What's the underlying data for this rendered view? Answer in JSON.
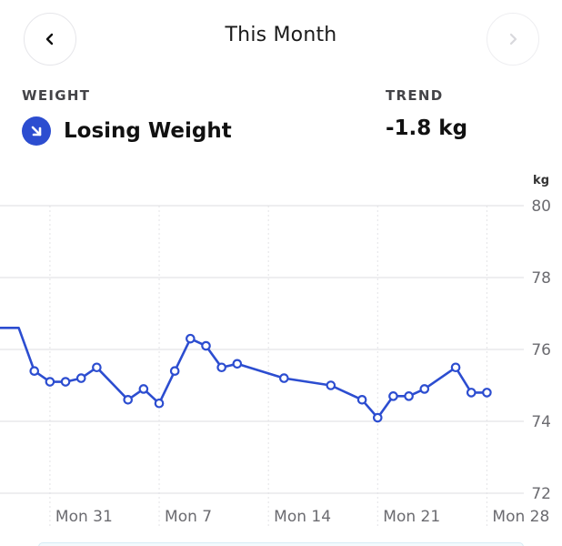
{
  "header": {
    "title": "This Month",
    "prev_icon": "chevron-left-icon",
    "next_icon": "chevron-right-icon"
  },
  "summary": {
    "weight_label": "WEIGHT",
    "weight_status": "Losing Weight",
    "status_icon": "arrow-down-right-icon",
    "trend_label": "TREND",
    "trend_value": "-1.8 kg"
  },
  "colors": {
    "accent": "#2c4dd0",
    "grid": "#e3e3e6",
    "text_muted": "#6b6b70"
  },
  "chart_data": {
    "type": "line",
    "ylabel": "kg",
    "ylim": [
      72,
      80
    ],
    "y_ticks": [
      80,
      78,
      76,
      74,
      72
    ],
    "x_tick_labels": [
      "Mon 31",
      "Mon 7",
      "Mon 14",
      "Mon 21",
      "Mon 28"
    ],
    "x_tick_days": [
      0,
      7,
      14,
      21,
      28
    ],
    "xlim": [
      -3.2,
      29.2
    ],
    "grid": true,
    "series": [
      {
        "x": [
          -3.2,
          -2,
          -1,
          0,
          1,
          2,
          3,
          5,
          6,
          7,
          8,
          9,
          10,
          11,
          12,
          15,
          18,
          20,
          21,
          22,
          23,
          24,
          26,
          27,
          28
        ],
        "values": [
          76.6,
          76.6,
          75.4,
          75.1,
          75.1,
          75.2,
          75.5,
          74.6,
          74.9,
          74.5,
          75.4,
          76.3,
          76.1,
          75.5,
          75.6,
          75.2,
          75.0,
          74.6,
          74.1,
          74.7,
          74.7,
          74.9,
          75.5,
          74.8,
          74.8
        ],
        "markers": [
          false,
          false,
          true,
          true,
          true,
          true,
          true,
          true,
          true,
          true,
          true,
          true,
          true,
          true,
          true,
          true,
          true,
          true,
          true,
          true,
          true,
          true,
          true,
          true,
          true
        ]
      }
    ]
  }
}
